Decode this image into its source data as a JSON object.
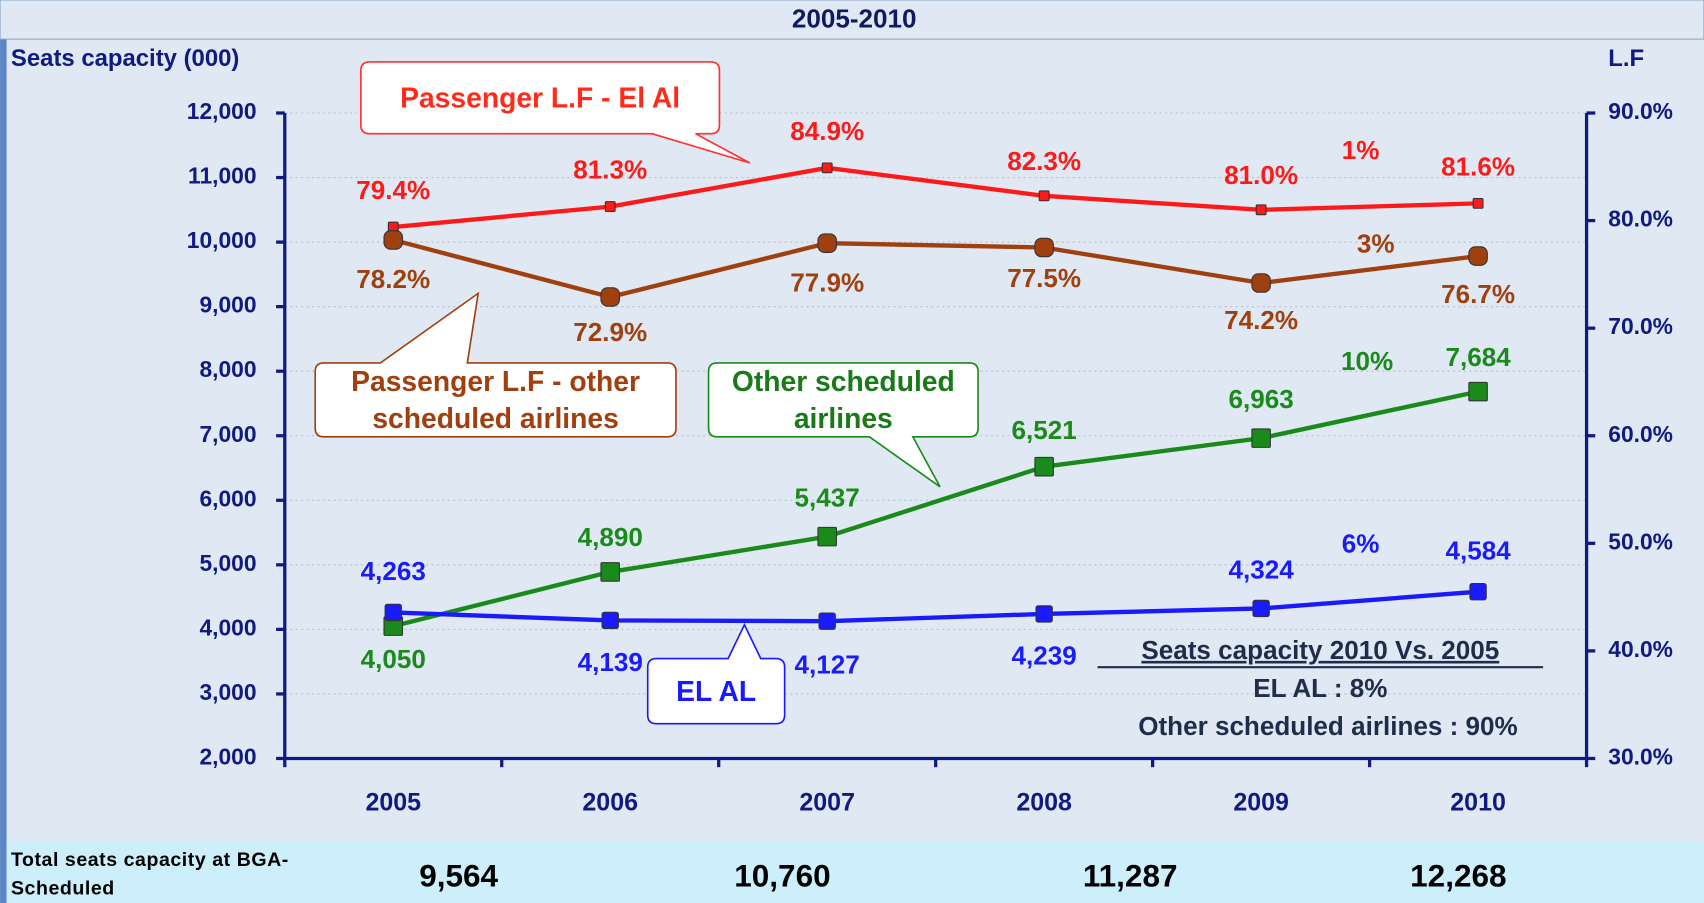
{
  "chart_data": {
    "type": "line",
    "title": "2005-2010",
    "ylabel": "Seats capacity (000)",
    "y2label": "L.F",
    "categories": [
      "2005",
      "2006",
      "2007",
      "2008",
      "2009",
      "2010"
    ],
    "ylim": [
      2000,
      12000
    ],
    "yticks": [
      {
        "value": 2000,
        "label": "2,000"
      },
      {
        "value": 3000,
        "label": "3,000"
      },
      {
        "value": 4000,
        "label": "4,000"
      },
      {
        "value": 5000,
        "label": "5,000"
      },
      {
        "value": 6000,
        "label": "6,000"
      },
      {
        "value": 7000,
        "label": "7,000"
      },
      {
        "value": 8000,
        "label": "8,000"
      },
      {
        "value": 9000,
        "label": "9,000"
      },
      {
        "value": 10000,
        "label": "10,000"
      },
      {
        "value": 11000,
        "label": "11,000"
      },
      {
        "value": 12000,
        "label": "12,000"
      }
    ],
    "y2lim": [
      30,
      90
    ],
    "y2ticks": [
      {
        "value": 30,
        "label": "30.0%"
      },
      {
        "value": 40,
        "label": "40.0%"
      },
      {
        "value": 50,
        "label": "50.0%"
      },
      {
        "value": 60,
        "label": "60.0%"
      },
      {
        "value": 70,
        "label": "70.0%"
      },
      {
        "value": 80,
        "label": "80.0%"
      },
      {
        "value": 90,
        "label": "90.0%"
      }
    ],
    "grid": true,
    "series": [
      {
        "name": "Passenger L.F - El Al",
        "color": "#ff1a1a",
        "axis": "y2",
        "values": [
          79.4,
          81.3,
          84.9,
          82.3,
          81.0,
          81.6
        ],
        "value_labels": [
          "79.4%",
          "81.3%",
          "84.9%",
          "82.3%",
          "81.0%",
          "81.6%"
        ]
      },
      {
        "name": "Passenger L.F - other scheduled airlines",
        "color": "#a0400f",
        "axis": "y2",
        "values": [
          78.2,
          72.9,
          77.9,
          77.5,
          74.2,
          76.7
        ],
        "value_labels": [
          "78.2%",
          "72.9%",
          "77.9%",
          "77.5%",
          "74.2%",
          "76.7%"
        ]
      },
      {
        "name": "Other scheduled airlines",
        "color": "#1a8a1a",
        "values": [
          4050,
          4890,
          5437,
          6521,
          6963,
          7684
        ],
        "value_labels": [
          "4,050",
          "4,890",
          "5,437",
          "6,521",
          "6,963",
          "7,684"
        ]
      },
      {
        "name": "EL AL",
        "color": "#1a1aff",
        "values": [
          4263,
          4139,
          4127,
          4239,
          4324,
          4584
        ],
        "value_labels": [
          "4,263",
          "4,139",
          "4,127",
          "4,239",
          "4,324",
          "4,584"
        ]
      }
    ],
    "annotations": [
      {
        "text": "1%",
        "color": "#ff1a1a"
      },
      {
        "text": "3%",
        "color": "#a0400f"
      },
      {
        "text": "10%",
        "color": "#1a8a1a"
      },
      {
        "text": "6%",
        "color": "#1a1aff"
      }
    ],
    "summary": {
      "heading": "Seats capacity  2010 Vs. 2005",
      "lines": [
        "EL AL : 8%",
        "Other scheduled airlines : 90%"
      ]
    }
  },
  "footer": {
    "label": "Total seats capacity at BGA-Scheduled",
    "values": [
      "9,564",
      "10,760",
      "11,287",
      "12,268"
    ]
  }
}
